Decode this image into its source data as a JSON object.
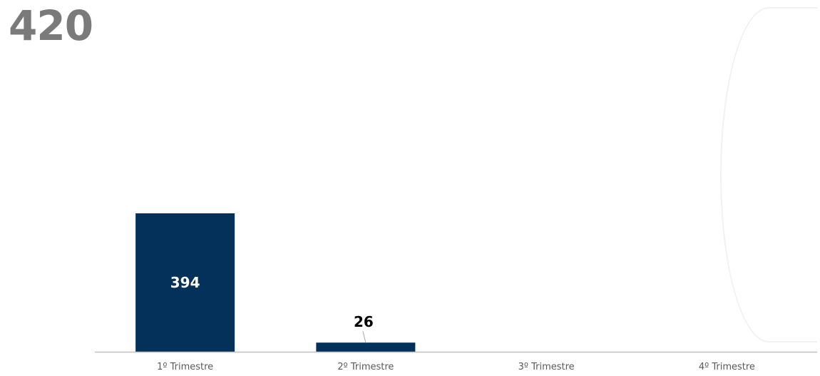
{
  "header": {
    "total": "420"
  },
  "chart_data": {
    "type": "bar",
    "categories": [
      "1º Trimestre",
      "2º Trimestre",
      "3º Trimestre",
      "4º Trimestre"
    ],
    "values": [
      394,
      26,
      null,
      null
    ],
    "data_labels": [
      "394",
      "26",
      "",
      ""
    ],
    "bar_color": "#03315a",
    "ylim": [
      0,
      400
    ],
    "grid": false,
    "legend": "none",
    "xlabel": "",
    "ylabel": ""
  }
}
